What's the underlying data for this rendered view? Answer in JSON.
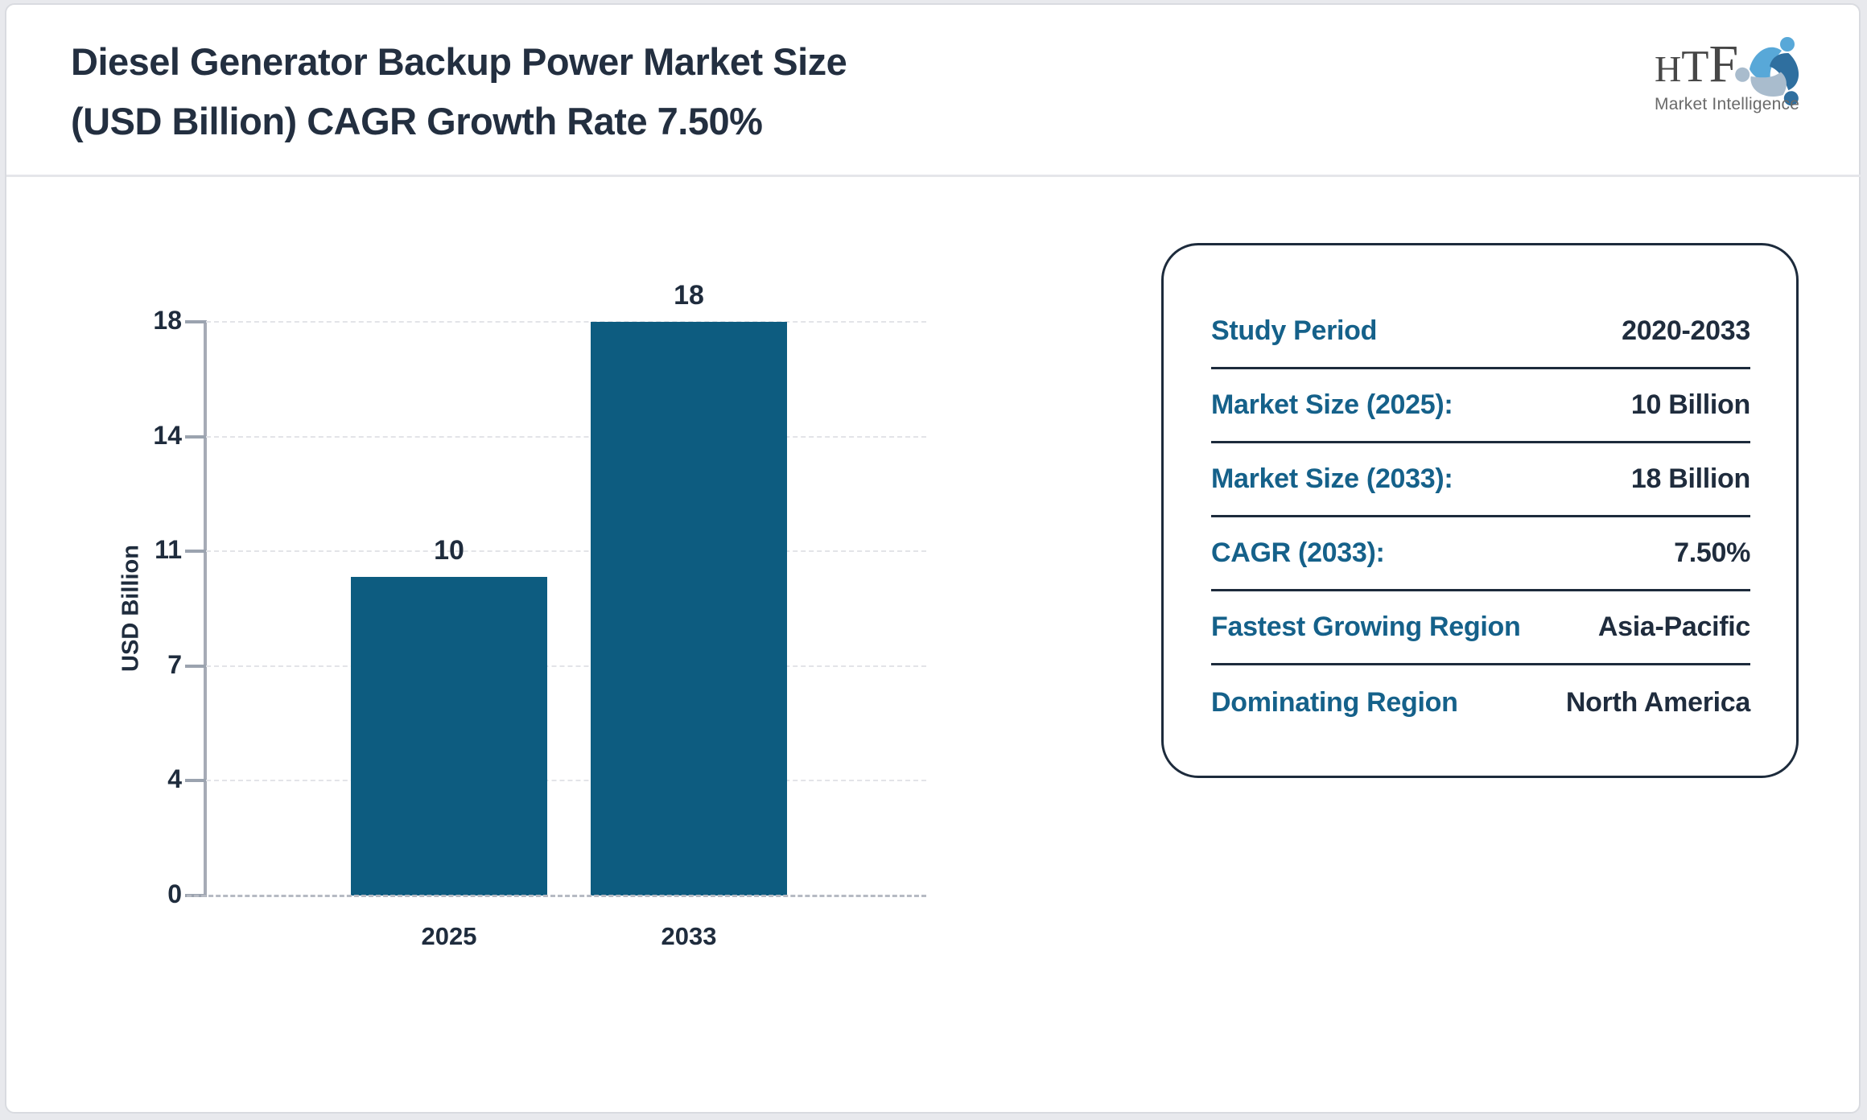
{
  "header": {
    "title_lines": [
      "Diesel Generator Backup Power Market Size",
      "(USD Billion) CAGR Growth Rate 7.50%"
    ]
  },
  "logo": {
    "letters": [
      "H",
      "T",
      "F"
    ],
    "subtext": "Market Intelligence",
    "icon": "three-figures-swirl-icon"
  },
  "chart_data": {
    "type": "bar",
    "title": "Diesel Generator Backup Power Market Size (USD Billion) CAGR Growth Rate 7.50%",
    "categories": [
      "2025",
      "2033"
    ],
    "values": [
      10,
      18
    ],
    "bar_labels": [
      "10",
      "18"
    ],
    "xlabel": "",
    "ylabel": "USD Billion",
    "ylim": [
      0,
      18
    ],
    "ytick_labels_top_to_bottom": [
      "18",
      "14",
      "11",
      "7",
      "4",
      "0"
    ],
    "grid": "horizontal-dashed",
    "legend": "none",
    "bar_color": "#0d5c80"
  },
  "info_panel": {
    "rows": [
      {
        "label": "Study Period",
        "value": "2020-2033"
      },
      {
        "label": "Market Size (2025):",
        "value": "10 Billion"
      },
      {
        "label": "Market Size (2033):",
        "value": "18 Billion"
      },
      {
        "label": "CAGR (2033):",
        "value": "7.50%"
      },
      {
        "label": "Fastest Growing Region",
        "value": "Asia-Pacific"
      },
      {
        "label": "Dominating Region",
        "value": "North America"
      }
    ]
  },
  "colors": {
    "bar": "#0d5c80",
    "accent_label": "#15618a",
    "text_dark": "#1f2c3d",
    "logo_light_blue": "#58a8d8",
    "logo_steel_blue": "#2f6f9f",
    "logo_pale_blue": "#a9bccd"
  }
}
